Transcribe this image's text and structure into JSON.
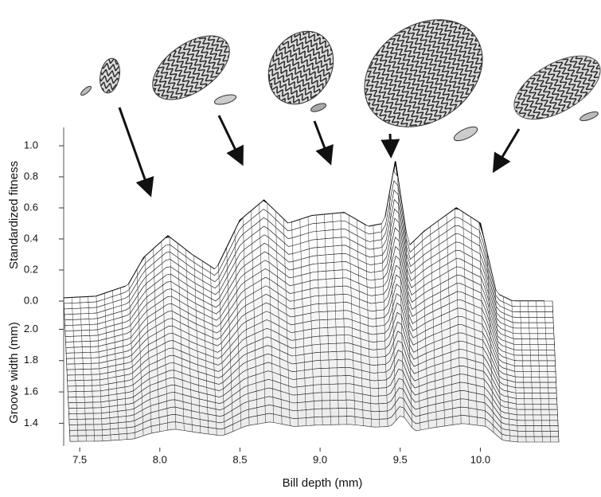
{
  "chart_data": {
    "type": "surface",
    "x_label": "Bill depth (mm)",
    "y_label": "Standardized fitness",
    "z_label": "Groove width (mm)",
    "xlim": [
      7.4,
      10.45
    ],
    "xticks": [
      7.5,
      {
        "value": 8.0,
        "label": "8.0"
      },
      8.5,
      {
        "value": 9.0,
        "label": "9.0"
      },
      9.5,
      {
        "value": 10.0,
        "label": "10.0"
      }
    ],
    "ylim": [
      0,
      1
    ],
    "yticks": [
      {
        "value": 0,
        "label": "0.0"
      },
      0.2,
      0.4,
      0.6,
      0.8,
      {
        "value": 1,
        "label": "1.0"
      }
    ],
    "zlim": [
      1.28,
      2.18
    ],
    "zticks": [
      1.4,
      1.6,
      1.8,
      {
        "value": 2,
        "label": "2.0"
      }
    ],
    "x": [
      7.4,
      7.6,
      7.8,
      7.9,
      8.05,
      8.2,
      8.35,
      8.5,
      8.65,
      8.8,
      8.95,
      9.15,
      9.3,
      9.4,
      9.47,
      9.55,
      9.65,
      9.85,
      10.0,
      10.1,
      10.2,
      10.4
    ],
    "values": [
      0.02,
      0.03,
      0.1,
      0.28,
      0.42,
      0.3,
      0.2,
      0.52,
      0.65,
      0.5,
      0.55,
      0.57,
      0.48,
      0.5,
      0.9,
      0.35,
      0.45,
      0.6,
      0.5,
      0.05,
      0.0,
      0.0
    ]
  }
}
